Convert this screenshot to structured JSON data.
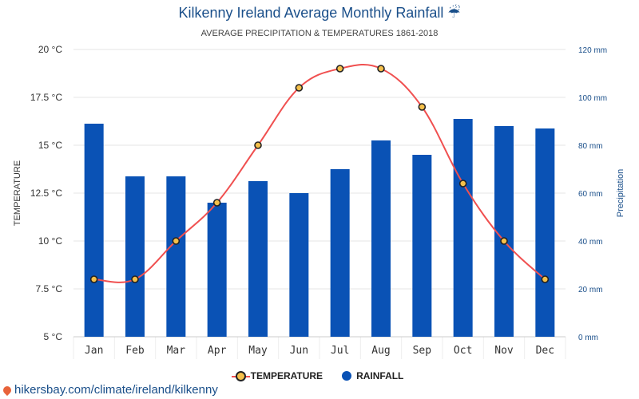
{
  "chart_data": {
    "type": "bar+line",
    "title": "Kilkenny Ireland Average Monthly Rainfall",
    "title_icon": "☔",
    "subtitle": "AVERAGE PRECIPITATION & TEMPERATURES 1861-2018",
    "categories": [
      "Jan",
      "Feb",
      "Mar",
      "Apr",
      "May",
      "Jun",
      "Jul",
      "Aug",
      "Sep",
      "Oct",
      "Nov",
      "Dec"
    ],
    "left_axis": {
      "label": "TEMPERATURE",
      "range": [
        5,
        20
      ],
      "ticks": [
        5,
        7.5,
        10,
        12.5,
        15,
        17.5,
        20
      ],
      "tick_labels": [
        "5 °C",
        "7.5 °C",
        "10 °C",
        "12.5 °C",
        "15 °C",
        "17.5 °C",
        "20 °C"
      ]
    },
    "right_axis": {
      "label": "Precipitation",
      "range": [
        0,
        120
      ],
      "ticks": [
        0,
        20,
        40,
        60,
        80,
        100,
        120
      ],
      "tick_labels": [
        "0 mm",
        "20 mm",
        "40 mm",
        "60 mm",
        "80 mm",
        "100 mm",
        "120 mm"
      ]
    },
    "series": [
      {
        "name": "TEMPERATURE",
        "type": "line",
        "axis": "left",
        "color": "#f05050",
        "marker_color": "#f5c04a",
        "values": [
          8,
          8,
          10,
          12,
          15,
          18,
          19,
          19,
          17,
          13,
          10,
          8
        ]
      },
      {
        "name": "RAINFALL",
        "type": "bar",
        "axis": "right",
        "color": "#0a52b5",
        "values": [
          89,
          67,
          67,
          56,
          65,
          60,
          70,
          82,
          76,
          91,
          88,
          87
        ]
      }
    ],
    "grid": true,
    "legend_position": "bottom-center"
  },
  "footer_text": "hikersbay.com/climate/ireland/kilkenny",
  "colors": {
    "title": "#1a4f8a",
    "bar": "#0a52b5",
    "line": "#f05050",
    "marker": "#f5c04a"
  }
}
